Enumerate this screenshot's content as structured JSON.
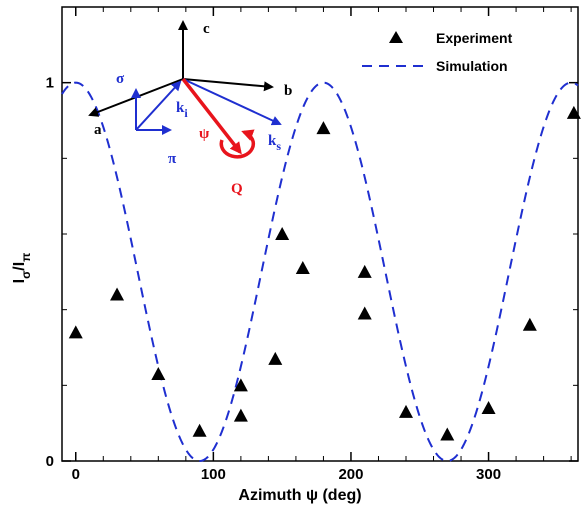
{
  "chart_data": {
    "type": "scatter",
    "xlabel": "Azimuth ψ (deg)",
    "ylabel": "Iσ/Iπ",
    "ylabel_main": "I",
    "ylabel_sub1": "σ",
    "ylabel_mid": "/I",
    "ylabel_sub2": "π",
    "xlim": [
      -10,
      365
    ],
    "ylim": [
      0,
      1.2
    ],
    "xticks": [
      0,
      100,
      200,
      300
    ],
    "yticks": [
      0,
      1
    ],
    "xtick_labels": [
      "0",
      "100",
      "200",
      "300"
    ],
    "ytick_labels": [
      "0",
      "1"
    ],
    "series": [
      {
        "name": "Experiment",
        "marker": "triangle",
        "color": "#000000",
        "x": [
          0,
          30,
          60,
          90,
          120,
          120,
          145,
          150,
          165,
          180,
          210,
          210,
          240,
          270,
          300,
          330,
          362
        ],
        "y": [
          0.34,
          0.44,
          0.23,
          0.08,
          0.12,
          0.2,
          0.27,
          0.6,
          0.51,
          0.88,
          0.5,
          0.39,
          0.13,
          0.07,
          0.14,
          0.36,
          0.92
        ]
      },
      {
        "name": "Simulation",
        "style": "dashed",
        "color": "#1f2fd0",
        "formula": "cos^2(psi) of period 180 deg, peaks at psi = 0, 180, 360"
      }
    ],
    "legend_position": "top-right",
    "grid": false
  },
  "inset": {
    "axis_labels": [
      "a",
      "b",
      "c"
    ],
    "polarization_labels": [
      "σ",
      "π"
    ],
    "wavevector_in": "k",
    "wavevector_in_sub": "i",
    "wavevector_out": "k",
    "wavevector_out_sub": "s",
    "azimuth_symbol": "ψ",
    "scattering_vector": "Q",
    "colors": {
      "black": "#000000",
      "blue": "#1f2fd0",
      "red": "#e8141c"
    }
  }
}
